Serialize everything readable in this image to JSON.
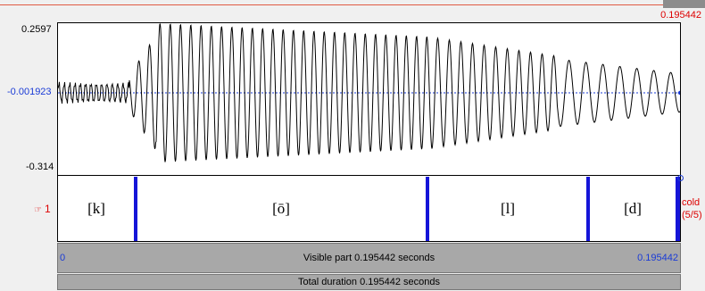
{
  "cursor": {
    "time_label": "0.195442"
  },
  "waveform": {
    "y_max": "0.2597",
    "y_zero": "-0.001923",
    "y_min": "-0.314"
  },
  "tier": {
    "number": "1",
    "name": "cold",
    "count": "(5/5)",
    "intervals": [
      {
        "label": "[k]"
      },
      {
        "label": "[ō]"
      },
      {
        "label": "[l]"
      },
      {
        "label": "[d]"
      }
    ]
  },
  "visible_bar": {
    "start": "0",
    "text": "Visible part 0.195442 seconds",
    "end": "0.195442"
  },
  "total_bar": {
    "text": "Total duration 0.195442 seconds"
  },
  "colors": {
    "boundary": "#1515d8",
    "selection": "#d00000",
    "zero_line": "#1a3bd6"
  }
}
